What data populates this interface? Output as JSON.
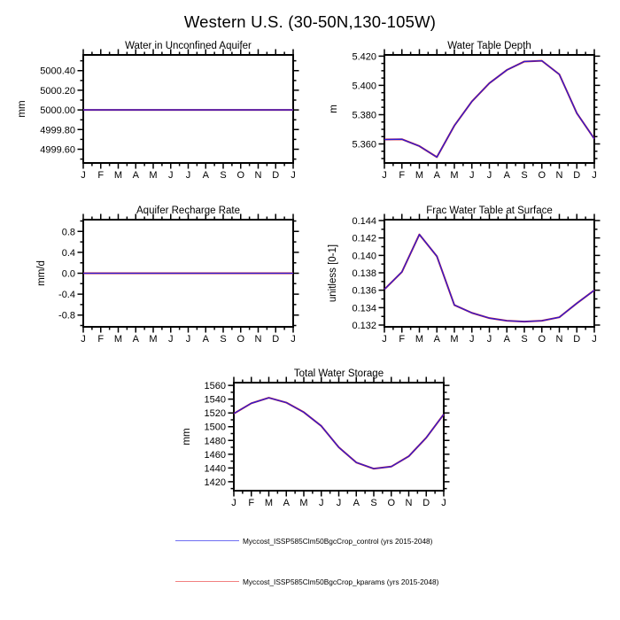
{
  "title": "Western U.S. (30-50N,130-105W)",
  "months": [
    "J",
    "F",
    "M",
    "A",
    "M",
    "J",
    "J",
    "A",
    "S",
    "O",
    "N",
    "D",
    "J"
  ],
  "series_colors": {
    "control": "#2b1bd5",
    "kparams": "#dd2222"
  },
  "chart_data": [
    {
      "type": "line",
      "title": "Water in Unconfined Aquifer",
      "ylabel": "mm",
      "ylim": [
        4999.46,
        5000.56
      ],
      "yticks": {
        "start": 4999.6,
        "step": 0.2,
        "count": 5,
        "decimals": 2
      },
      "minor_step": 0.1,
      "series": [
        {
          "name": "kparams",
          "values": [
            5000.0,
            5000.0,
            5000.0,
            5000.0,
            5000.0,
            5000.0,
            5000.0,
            5000.0,
            5000.0,
            5000.0,
            5000.0,
            5000.0,
            5000.0
          ]
        },
        {
          "name": "control",
          "values": [
            5000.0,
            5000.0,
            5000.0,
            5000.0,
            5000.0,
            5000.0,
            5000.0,
            5000.0,
            5000.0,
            5000.0,
            5000.0,
            5000.0,
            5000.0
          ]
        }
      ]
    },
    {
      "type": "line",
      "title": "Water Table Depth",
      "ylabel": "m",
      "ylim": [
        5.347,
        5.4208
      ],
      "yticks": {
        "start": 5.36,
        "step": 0.02,
        "count": 4,
        "decimals": 3
      },
      "minor_step": 0.005,
      "series": [
        {
          "name": "kparams",
          "values": [
            5.363,
            5.3632,
            5.3585,
            5.351,
            5.3725,
            5.389,
            5.4015,
            5.4105,
            5.4163,
            5.4168,
            5.4075,
            5.381,
            5.3635
          ]
        },
        {
          "name": "control",
          "values": [
            5.363,
            5.3632,
            5.3585,
            5.351,
            5.3725,
            5.389,
            5.4015,
            5.4105,
            5.4163,
            5.4168,
            5.4075,
            5.381,
            5.3635
          ]
        }
      ]
    },
    {
      "type": "line",
      "title": "Aquifer Recharge Rate",
      "ylabel": "mm/d",
      "ylim": [
        -1.025,
        1.025
      ],
      "yticks": {
        "start": -0.8,
        "step": 0.4,
        "count": 5,
        "decimals": 1
      },
      "minor_step": 0.2,
      "series": [
        {
          "name": "kparams",
          "values": [
            0,
            0,
            0,
            0,
            0,
            0,
            0,
            0,
            0,
            0,
            0,
            0,
            0
          ]
        },
        {
          "name": "control",
          "values": [
            0,
            0,
            0,
            0,
            0,
            0,
            0,
            0,
            0,
            0,
            0,
            0,
            0
          ]
        }
      ]
    },
    {
      "type": "line",
      "title": "Frac Water Table at Surface",
      "ylabel": "unitless [0-1]",
      "ylim": [
        0.1318,
        0.1441
      ],
      "yticks": {
        "start": 0.132,
        "step": 0.002,
        "count": 7,
        "decimals": 3
      },
      "minor_step": 0.001,
      "series": [
        {
          "name": "kparams",
          "values": [
            0.1361,
            0.1381,
            0.1424,
            0.1399,
            0.1343,
            0.1334,
            0.1328,
            0.1325,
            0.1324,
            0.1325,
            0.1329,
            0.1345,
            0.136
          ]
        },
        {
          "name": "control",
          "values": [
            0.1361,
            0.1381,
            0.1424,
            0.1399,
            0.1343,
            0.1334,
            0.1328,
            0.1325,
            0.1324,
            0.1325,
            0.1329,
            0.1345,
            0.136
          ]
        }
      ]
    },
    {
      "type": "line",
      "title": "Total Water Storage",
      "ylabel": "mm",
      "ylim": [
        1407,
        1564
      ],
      "yticks": {
        "start": 1420,
        "step": 20,
        "count": 8,
        "decimals": 0
      },
      "minor_step": 10,
      "series": [
        {
          "name": "kparams",
          "values": [
            1519,
            1534,
            1542,
            1535,
            1521,
            1501,
            1470,
            1448,
            1439,
            1442,
            1457,
            1484,
            1518
          ]
        },
        {
          "name": "control",
          "values": [
            1519,
            1534,
            1542,
            1535,
            1521,
            1501,
            1470,
            1448,
            1439,
            1442,
            1457,
            1484,
            1518
          ]
        }
      ]
    }
  ],
  "legend": [
    {
      "series": "control",
      "label": "Myccost_ISSP585Clm50BgcCrop_control (yrs 2015-2048)",
      "color": "#6f6ff2"
    },
    {
      "series": "kparams",
      "label": "Myccost_ISSP585Clm50BgcCrop_kparams (yrs 2015-2048)",
      "color": "#f28080"
    }
  ]
}
